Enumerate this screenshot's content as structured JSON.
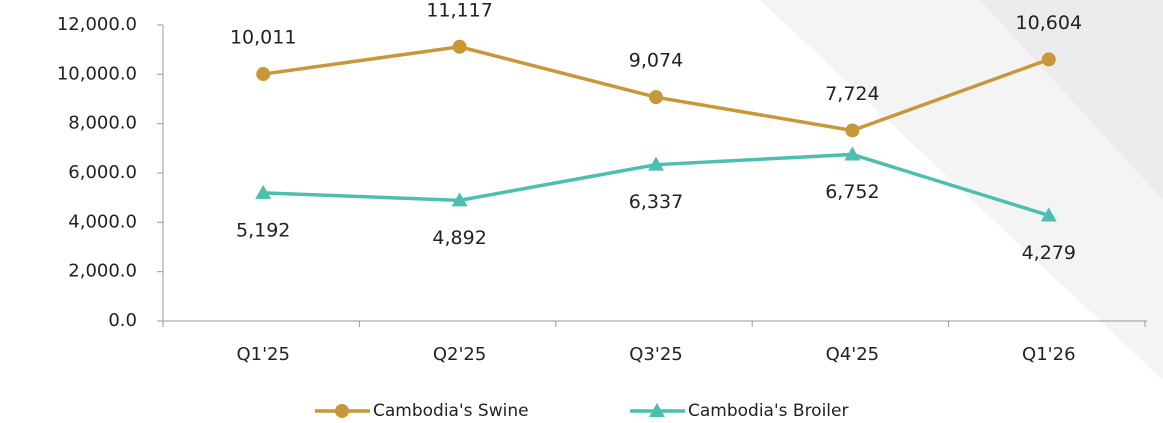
{
  "chart_data": {
    "type": "line",
    "categories": [
      "Q1'25",
      "Q2'25",
      "Q3'25",
      "Q4'25",
      "Q1'26"
    ],
    "series": [
      {
        "name": "Cambodia's Swine",
        "color": "#c8973a",
        "marker": "circle",
        "label_position": "above",
        "values": [
          10011,
          11117,
          9074,
          7724,
          10604
        ],
        "value_labels": [
          "10,011",
          "11,117",
          "9,074",
          "7,724",
          "10,604"
        ]
      },
      {
        "name": "Cambodia's Broiler",
        "color": "#4dbfae",
        "marker": "triangle",
        "label_position": "below",
        "values": [
          5192,
          4892,
          6337,
          6752,
          4279
        ],
        "value_labels": [
          "5,192",
          "4,892",
          "6,337",
          "6,752",
          "4,279"
        ]
      }
    ],
    "ylim": [
      0,
      12000
    ],
    "yticks": [
      {
        "value": 0,
        "label": "0.0"
      },
      {
        "value": 2000,
        "label": "2,000.0"
      },
      {
        "value": 4000,
        "label": "4,000.0"
      },
      {
        "value": 6000,
        "label": "6,000.0"
      },
      {
        "value": 8000,
        "label": "8,000.0"
      },
      {
        "value": 10000,
        "label": "10,000.0"
      },
      {
        "value": 12000,
        "label": "12,000.0"
      }
    ],
    "grid": false,
    "legend": "bottom"
  }
}
